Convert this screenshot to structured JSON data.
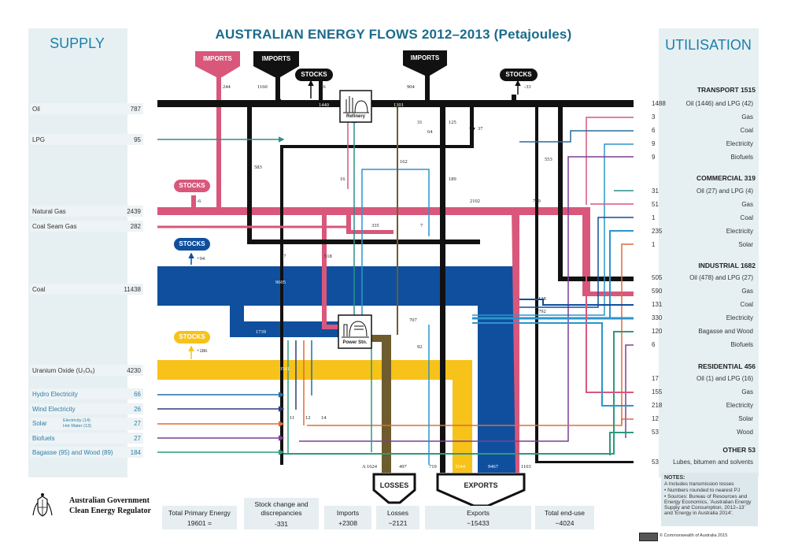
{
  "title": "AUSTRALIAN ENERGY FLOWS 2012–2013 (Petajoules)",
  "supply_heading": "SUPPLY",
  "utilisation_heading": "UTILISATION",
  "supply_rows": [
    {
      "label": "Oil",
      "value": "787"
    },
    {
      "label": "LPG",
      "value": "95"
    },
    {
      "label": "Natural Gas",
      "value": "2439"
    },
    {
      "label": "Coal Seam Gas",
      "value": "282"
    },
    {
      "label": "Coal",
      "value": "11438"
    },
    {
      "label": "Uranium Oxide (U₃O₈)",
      "value": "4230"
    },
    {
      "label": "Hydro Electricity",
      "value": "66"
    },
    {
      "label": "Wind Electricity",
      "value": "26"
    },
    {
      "label": "Solar",
      "value": "27",
      "sub1": "Electricity (14)",
      "sub2": "Hot Water (13)"
    },
    {
      "label": "Biofuels",
      "value": "27"
    },
    {
      "label": "Bagasse (95) and Wood (89)",
      "value": "184"
    }
  ],
  "sections": {
    "transport": "TRANSPORT 1515",
    "commercial": "COMMERCIAL 319",
    "industrial": "INDUSTRIAL 1682",
    "residential": "RESIDENTIAL 456",
    "other": "OTHER 53"
  },
  "util_rows": [
    {
      "value": "1488",
      "label": "Oil (1446) and LPG (42)"
    },
    {
      "value": "3",
      "label": "Gas"
    },
    {
      "value": "6",
      "label": "Coal"
    },
    {
      "value": "9",
      "label": "Electricity"
    },
    {
      "value": "9",
      "label": "Biofuels"
    },
    {
      "value": "31",
      "label": "Oil (27) and LPG (4)"
    },
    {
      "value": "51",
      "label": "Gas"
    },
    {
      "value": "1",
      "label": "Coal"
    },
    {
      "value": "235",
      "label": "Electricity"
    },
    {
      "value": "1",
      "label": "Solar"
    },
    {
      "value": "505",
      "label": "Oil (478) and LPG (27)"
    },
    {
      "value": "590",
      "label": "Gas"
    },
    {
      "value": "131",
      "label": "Coal"
    },
    {
      "value": "330",
      "label": "Electricity"
    },
    {
      "value": "120",
      "label": "Bagasse and Wood"
    },
    {
      "value": "6",
      "label": "Biofuels"
    },
    {
      "value": "17",
      "label": "Oil (1) and LPG (16)"
    },
    {
      "value": "155",
      "label": "Gas"
    },
    {
      "value": "218",
      "label": "Electricity"
    },
    {
      "value": "12",
      "label": "Solar"
    },
    {
      "value": "53",
      "label": "Wood"
    },
    {
      "value": "53",
      "label": "Lubes, bitumen and solvents"
    }
  ],
  "nodes": {
    "imports": "IMPORTS",
    "stocks": "STOCKS",
    "refinery": "Refinery",
    "power": "Power Stn.",
    "losses": "LOSSES",
    "exports": "EXPORTS"
  },
  "flow_labels": {
    "imp_pink": "244",
    "imp_oil": "1160",
    "stocks_oil": "-76",
    "imp_right": "904",
    "stocks_right": "-33",
    "ref_in": "1440",
    "ref_out": "1301",
    "f31": "31",
    "f64": "64",
    "f125": "125",
    "f37a": "37",
    "f583": "583",
    "f162": "162",
    "f553": "553",
    "f16": "16",
    "f189": "189",
    "f2102": "2102",
    "f799": "799",
    "f335": "335",
    "f7": "7",
    "f37b": "37",
    "f518": "518",
    "f9605": "9605",
    "f138": "138",
    "f792": "792",
    "f1739": "1739",
    "f707": "707",
    "f92": "92",
    "f3541": "3541",
    "f11": "11",
    "f12": "12",
    "f14": "14",
    "stocks_gas": "-6",
    "stocks_coal": "+94",
    "stocks_uran": "+286",
    "bot_a": "A 1624",
    "bot_497": "497",
    "bot_719": "719",
    "bot_3544": "3544",
    "bot_9467": "9467",
    "bot_1103": "1103"
  },
  "summary": {
    "tpe_label": "Total Primary Energy",
    "tpe_value": "19601 =",
    "stock_label": "Stock change and discrepancies",
    "stock_value": "-331",
    "imports_label": "Imports",
    "imports_value": "+2308",
    "losses_label": "Losses",
    "losses_value": "−2121",
    "exports_label": "Exports",
    "exports_value": "−15433",
    "enduse_label": "Total end-use",
    "enduse_value": "−4024"
  },
  "gov": {
    "line1": "Australian Government",
    "line2": "Clean Energy Regulator"
  },
  "notes": {
    "heading": "NOTES:",
    "a": "A   Includes transmission losses",
    "b": "•  Numbers rounded to nearest PJ",
    "c": "•  Sources: Bureau of Resources and Energy Economics, 'Australian Energy Supply and Consumption, 2012–13' and 'Energy in Australia 2014'."
  },
  "copyright": "© Commonwealth of Australia 2015",
  "colors": {
    "oil": "#111111",
    "gas": "#d9577b",
    "coal": "#0f4f9e",
    "uranium": "#f7c21a",
    "losses": "#6e5c2d",
    "elec": "#2a95cc",
    "hydro": "#1e6fa8",
    "wind": "#2b3e78",
    "solar": "#e06a3b",
    "biofuel": "#7b3f93",
    "bagasse": "#2c9a7d",
    "lpg": "#2c8f8a",
    "gray": "#7a8a90"
  }
}
